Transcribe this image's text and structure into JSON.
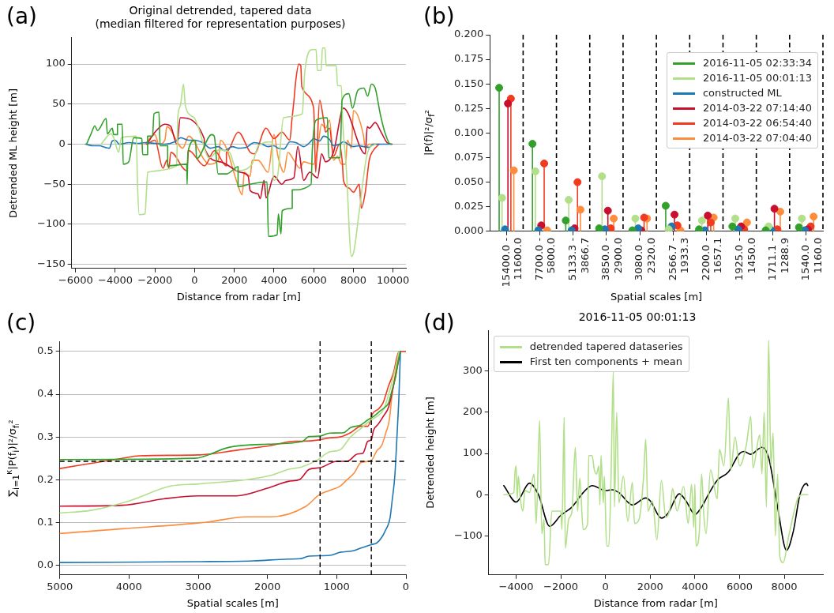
{
  "chart_data": [
    {
      "type": "line",
      "title": "Original detrended, tapered data\n(median filtered for representation purposes)",
      "xlabel": "Distance from radar [m]",
      "ylabel": "Detrended ML height [m]",
      "annotations": [
        "(a)"
      ],
      "xlim": [
        -6200,
        10650
      ],
      "xticks": [
        {
          "value": -6000,
          "label": "−6000"
        },
        {
          "value": -4000,
          "label": "−4000"
        },
        {
          "value": -2000,
          "label": "−2000"
        },
        0,
        2000,
        4000,
        6000,
        8000,
        10000
      ],
      "ylim": [
        -155,
        133
      ],
      "yticks": [
        {
          "value": -150,
          "label": "−150"
        },
        {
          "value": -100,
          "label": "−100"
        },
        {
          "value": -50,
          "label": "−50"
        },
        0,
        50,
        100
      ],
      "grid": "y",
      "marker": "none",
      "line_style": "solid",
      "series": [
        {
          "color": "#33a02c",
          "x": [
            -5450,
            -5220,
            -5030,
            -4900,
            -4460,
            -4400,
            -4150,
            -4080,
            -3890,
            -3890,
            -3650,
            -3600,
            -3320,
            -3070,
            -2660,
            -2620,
            -2370,
            -2370,
            -2120,
            -2050,
            -1800,
            -1740,
            -1360,
            -1360,
            -400,
            -380,
            -340,
            40,
            100,
            860,
            990,
            1180,
            1620,
            2190,
            2190,
            2760,
            3650,
            3720,
            4160,
            4220,
            4350,
            4410,
            4920,
            4920,
            5870,
            5930,
            6120,
            6690,
            6760,
            7330,
            7430,
            7770,
            7960,
            8220,
            8530,
            8720,
            8910,
            9100,
            9360,
            9610,
            9870,
            9930
          ],
          "values": [
            0,
            13,
            23,
            17,
            32,
            13,
            20,
            12,
            12,
            25,
            25,
            -25,
            -22,
            8,
            7,
            -13,
            -13,
            10,
            10,
            38,
            40,
            -2,
            -2,
            -27,
            -25,
            -50,
            -10,
            5,
            -18,
            12,
            10,
            -37,
            -37,
            -28,
            -53,
            -50,
            -47,
            -115,
            -113,
            -87,
            -112,
            -83,
            -80,
            -57,
            -50,
            -7,
            30,
            33,
            -17,
            -17,
            55,
            63,
            45,
            67,
            70,
            60,
            75,
            70,
            37,
            13,
            0,
            0
          ]
        },
        {
          "color": "#b2df8a",
          "x": [
            -4720,
            -4210,
            -4080,
            -3830,
            -3700,
            -2940,
            -2880,
            -2790,
            -2500,
            -2430,
            -2370,
            -910,
            -850,
            -720,
            -560,
            -470,
            -25,
            160,
            740,
            1240,
            1750,
            2130,
            2890,
            3210,
            3910,
            3970,
            4160,
            4480,
            5430,
            5490,
            5550,
            5930,
            6120,
            6190,
            6380,
            6440,
            6570,
            6630,
            7140,
            7200,
            7390,
            7460,
            7650,
            7900,
            8030,
            8280,
            8720,
            9100
          ],
          "values": [
            0,
            13,
            8,
            -10,
            8,
            10,
            -50,
            -88,
            -87,
            -60,
            -35,
            -27,
            33,
            48,
            75,
            48,
            33,
            23,
            -17,
            -7,
            -10,
            -33,
            -25,
            -2,
            3,
            -45,
            -42,
            33,
            38,
            63,
            90,
            118,
            118,
            92,
            92,
            120,
            120,
            98,
            98,
            73,
            73,
            30,
            -33,
            -140,
            -133,
            -87,
            -10,
            0
          ]
        },
        {
          "color": "#1f78b4",
          "x": [
            -5500,
            -5100,
            -4800,
            -4500,
            -4300,
            -4150,
            -4000,
            -3800,
            -3300,
            -2800,
            -2500,
            -2000,
            -1500,
            -1000,
            -700,
            -300,
            0,
            400,
            800,
            1200,
            1500,
            1900,
            2200,
            2600,
            3000,
            3400,
            3700,
            4000,
            4200,
            4500,
            4800,
            5100,
            5500,
            5800,
            6000,
            6300,
            6500,
            6800,
            7000,
            7300,
            7500,
            7800,
            8000,
            8300,
            8500,
            8800,
            9000,
            9400,
            9900
          ],
          "values": [
            0,
            -2,
            -2,
            -4,
            -5,
            4,
            5,
            0,
            2,
            1,
            2,
            1,
            0,
            3,
            8,
            5,
            5,
            2,
            -5,
            -3,
            -8,
            -3,
            -5,
            -4,
            2,
            0,
            -3,
            -2,
            -5,
            -6,
            3,
            2,
            -3,
            2,
            7,
            4,
            10,
            6,
            -2,
            0,
            3,
            -1,
            -3,
            -2,
            -3,
            -4,
            0,
            0,
            0
          ]
        },
        {
          "color": "#c8102e",
          "x": [
            -2400,
            -2000,
            -1500,
            -1200,
            -900,
            -720,
            480,
            500,
            1300,
            2300,
            2700,
            2800,
            3200,
            3300,
            3500,
            3600,
            4000,
            4400,
            4600,
            5000,
            5200,
            5500,
            5800,
            6200,
            6400,
            6600,
            7000,
            7500,
            8600,
            8700,
            8800,
            9100,
            9400,
            9700,
            9950
          ],
          "values": [
            0,
            15,
            25,
            22,
            0,
            33,
            7,
            -5,
            -22,
            -35,
            -40,
            -58,
            -62,
            -68,
            -45,
            -67,
            -40,
            -50,
            -45,
            -42,
            -3,
            -45,
            -35,
            -42,
            -12,
            -22,
            -10,
            45,
            -12,
            22,
            20,
            27,
            15,
            2,
            0
          ]
        },
        {
          "color": "#f03b20",
          "x": [
            -2400,
            -2000,
            -1600,
            -1400,
            -1300,
            -1200,
            -400,
            -300,
            500,
            1000,
            1600,
            1600,
            2200,
            2800,
            3000,
            3600,
            4000,
            4400,
            4800,
            4900,
            5000,
            5100,
            5250,
            5350,
            5400,
            6000,
            6100,
            6300,
            6500,
            6600,
            6800,
            7000,
            7300,
            7450,
            7500,
            7800,
            8000,
            8300,
            8400,
            8600,
            8800,
            9000,
            9300
          ],
          "values": [
            0,
            5,
            -30,
            -20,
            -30,
            -10,
            -33,
            -8,
            -27,
            -8,
            -27,
            -10,
            15,
            -10,
            -12,
            20,
            7,
            15,
            5,
            30,
            53,
            80,
            100,
            98,
            72,
            45,
            -35,
            55,
            30,
            15,
            20,
            -15,
            0,
            -25,
            -45,
            -55,
            -60,
            -50,
            -80,
            -60,
            -20,
            -8,
            0
          ]
        },
        {
          "color": "#fd8d3c",
          "x": [
            -2500,
            -2000,
            -1800,
            -1500,
            -1400,
            -600,
            -300,
            500,
            700,
            1200,
            1300,
            1600,
            2100,
            2400,
            2500,
            2800,
            2900,
            3200,
            3700,
            4000,
            4200,
            4500,
            4700,
            5000,
            5300,
            5500,
            6000,
            6200,
            6400,
            6600,
            6800,
            7000,
            7200,
            7400,
            7600,
            7700,
            7900,
            8000,
            8500,
            8600,
            8800,
            9300
          ],
          "values": [
            0,
            12,
            0,
            5,
            22,
            -5,
            10,
            -20,
            -25,
            -20,
            5,
            -5,
            -45,
            -63,
            -35,
            -40,
            -20,
            -20,
            -35,
            12,
            -15,
            -35,
            -10,
            -20,
            -30,
            -22,
            -25,
            -5,
            25,
            20,
            30,
            -20,
            -15,
            -25,
            -25,
            5,
            -5,
            42,
            12,
            -5,
            0,
            0
          ]
        }
      ]
    },
    {
      "type": "lollipop",
      "xlabel": "Spatial scales [m]",
      "ylabel": "|P(f)|²/σ$_{f}$²",
      "annotations": [
        "(b)"
      ],
      "categories": [
        "15400.0 -\n11600.0",
        "7700.0 -\n5800.0",
        "5133.3 -\n3866.7",
        "3850.0 -\n2900.0",
        "3080.0 -\n2320.0",
        "2566.7 -\n1933.3",
        "2200.0 -\n1657.1",
        "1925.0 -\n1450.0",
        "1711.1 -\n1288.9",
        "1540.0 -\n1160.0"
      ],
      "ylim": [
        0,
        0.2
      ],
      "yticks": [
        {
          "value": 0,
          "label": "0.000"
        },
        0.025,
        {
          "value": 0.05,
          "label": "0.050"
        },
        0.075,
        {
          "value": 0.1,
          "label": "0.100"
        },
        0.125,
        {
          "value": 0.15,
          "label": "0.150"
        },
        0.175,
        {
          "value": 0.2,
          "label": "0.200"
        }
      ],
      "grid": "x",
      "legend": "top right",
      "marker": "circle",
      "series": [
        {
          "name": "2016-11-05 02:33:34",
          "color": "#33a02c",
          "values": [
            0.146,
            0.089,
            0.011,
            0.003,
            0.001,
            0.026,
            0.002,
            0.005,
            0.001,
            0.004
          ]
        },
        {
          "name": "2016-11-05 00:01:13",
          "color": "#b2df8a",
          "values": [
            0.034,
            0.061,
            0.032,
            0.056,
            0.013,
            0.002,
            0.011,
            0.013,
            0.005,
            0.013
          ]
        },
        {
          "name": "constructed ML",
          "color": "#1f78b4",
          "values": [
            0.002,
            0.001,
            0.001,
            0.002,
            0.003,
            0.005,
            0.001,
            0.002,
            0.001,
            0.001
          ]
        },
        {
          "name": "2014-03-22 07:14:40",
          "color": "#c8102e",
          "values": [
            0.13,
            0.006,
            0.003,
            0.021,
            0.001,
            0.017,
            0.016,
            0.005,
            0.023,
            0.002
          ]
        },
        {
          "name": "2014-03-22 06:54:40",
          "color": "#f03b20",
          "values": [
            0.135,
            0.069,
            0.05,
            0.003,
            0.014,
            0.006,
            0.009,
            0.002,
            0.002,
            0.005
          ]
        },
        {
          "name": "2014-03-22 07:04:40",
          "color": "#fd8d3c",
          "values": [
            0.062,
            0.001,
            0.022,
            0.013,
            0.013,
            0.001,
            0.014,
            0.009,
            0.02,
            0.015
          ]
        }
      ]
    },
    {
      "type": "line",
      "xlabel": "Spatial scales [m]",
      "ylabel": "∑$_{i=1}$$^{κ}$|P(f$_{i}$)|²/σ$_{fᵢ}$²",
      "annotations": [
        "(c)"
      ],
      "xlim": [
        5000,
        0
      ],
      "xticks": [
        5000,
        4000,
        3000,
        2000,
        1000,
        0
      ],
      "ylim": [
        -0.023,
        0.524
      ],
      "yticks": [
        {
          "value": 0,
          "label": "0.0"
        },
        0.1,
        0.2,
        0.3,
        0.4,
        0.5
      ],
      "grid": "y",
      "marker": "none",
      "line_style": "solid",
      "ref_lines": [
        {
          "axis": "y",
          "value": 0.243,
          "color": "#000000",
          "line_style": "dashed"
        },
        {
          "axis": "x",
          "value": 1240,
          "color": "#000000",
          "line_style": "dashed"
        },
        {
          "axis": "x",
          "value": 500,
          "color": "#000000",
          "line_style": "dashed"
        }
      ],
      "series": [
        {
          "color": "#33a02c",
          "x": [
            5000,
            3050,
            2550,
            2000,
            1500,
            1400,
            1250,
            1100,
            900,
            800,
            650,
            550,
            450,
            380,
            300,
            250,
            200,
            150,
            120,
            80
          ],
          "values": [
            0.247,
            0.25,
            0.276,
            0.283,
            0.289,
            0.301,
            0.302,
            0.309,
            0.31,
            0.322,
            0.328,
            0.34,
            0.35,
            0.36,
            0.37,
            0.38,
            0.41,
            0.44,
            0.47,
            0.5
          ]
        },
        {
          "color": "#b2df8a",
          "x": [
            5000,
            4550,
            4000,
            3400,
            3000,
            2300,
            1950,
            1700,
            1500,
            1300,
            1100,
            950,
            800,
            650,
            500,
            400,
            320,
            250,
            170,
            100
          ],
          "values": [
            0.122,
            0.128,
            0.15,
            0.185,
            0.19,
            0.2,
            0.21,
            0.224,
            0.23,
            0.244,
            0.265,
            0.27,
            0.3,
            0.32,
            0.34,
            0.35,
            0.365,
            0.4,
            0.45,
            0.5
          ]
        },
        {
          "color": "#1f78b4",
          "x": [
            5000,
            3000,
            2200,
            1700,
            1530,
            1400,
            1100,
            950,
            750,
            650,
            500,
            420,
            350,
            300,
            230,
            200,
            160,
            130,
            100,
            80
          ],
          "values": [
            0.006,
            0.008,
            0.01,
            0.014,
            0.015,
            0.021,
            0.023,
            0.03,
            0.034,
            0.04,
            0.048,
            0.052,
            0.065,
            0.08,
            0.11,
            0.15,
            0.21,
            0.3,
            0.4,
            0.5
          ]
        },
        {
          "color": "#c8102e",
          "x": [
            5000,
            4100,
            3500,
            3000,
            2450,
            2000,
            1700,
            1530,
            1400,
            1240,
            1000,
            850,
            700,
            620,
            550,
            500,
            470,
            400,
            320,
            250,
            180,
            80
          ],
          "values": [
            0.138,
            0.14,
            0.155,
            0.162,
            0.162,
            0.18,
            0.196,
            0.201,
            0.224,
            0.228,
            0.243,
            0.243,
            0.26,
            0.262,
            0.29,
            0.293,
            0.315,
            0.33,
            0.35,
            0.37,
            0.42,
            0.5
          ]
        },
        {
          "color": "#f03b20",
          "x": [
            5000,
            4100,
            3850,
            3000,
            2400,
            1950,
            1600,
            1500,
            1250,
            1100,
            950,
            800,
            650,
            550,
            480,
            400,
            330,
            250,
            180,
            100,
            0
          ],
          "values": [
            0.226,
            0.25,
            0.256,
            0.258,
            0.27,
            0.28,
            0.29,
            0.29,
            0.293,
            0.298,
            0.3,
            0.31,
            0.325,
            0.325,
            0.355,
            0.365,
            0.38,
            0.42,
            0.45,
            0.5,
            0.5
          ]
        },
        {
          "color": "#fd8d3c",
          "x": [
            5000,
            4100,
            2900,
            2300,
            1950,
            1450,
            1250,
            1100,
            950,
            850,
            750,
            650,
            500,
            420,
            350,
            290,
            240,
            200,
            150,
            100
          ],
          "values": [
            0.074,
            0.085,
            0.1,
            0.113,
            0.113,
            0.137,
            0.165,
            0.175,
            0.185,
            0.2,
            0.215,
            0.24,
            0.245,
            0.268,
            0.28,
            0.31,
            0.34,
            0.4,
            0.45,
            0.5
          ]
        }
      ]
    },
    {
      "type": "line",
      "title": "2016-11-05 00:01:13",
      "xlabel": "Distance from radar [m]",
      "ylabel": "Detrended height [m]",
      "annotations": [
        "(d)"
      ],
      "xlim": [
        -5230,
        9730
      ],
      "xticks": [
        {
          "value": -4000,
          "label": "−4000"
        },
        {
          "value": -2000,
          "label": "−2000"
        },
        0,
        2000,
        4000,
        6000,
        8000
      ],
      "ylim": [
        -195,
        398
      ],
      "yticks": [
        {
          "value": -100,
          "label": "−100"
        },
        0,
        100,
        200,
        300
      ],
      "legend": "top left",
      "marker": "none",
      "line_style": "solid",
      "series": [
        {
          "name": "detrended tapered dataseries",
          "color": "#b2df8a",
          "x": [
            -4550,
            -4100,
            -4050,
            -4000,
            -3950,
            -3900,
            -3800,
            -3700,
            -3600,
            -3400,
            -3200,
            -3100,
            -2950,
            -2850,
            -2750,
            -2700,
            -2550,
            -2400,
            -2000,
            -1950,
            -1850,
            -1800,
            -1650,
            -1500,
            -1350,
            -1250,
            -1150,
            -1000,
            -800,
            -750,
            -600,
            -500,
            -400,
            -300,
            -250,
            -200,
            -100,
            -50,
            50,
            150,
            250,
            350,
            400,
            500,
            600,
            800,
            1000,
            1200,
            1300,
            1500,
            1700,
            1800,
            1900,
            2100,
            2300,
            2500,
            2700,
            2900,
            3000,
            3200,
            3500,
            3700,
            3850,
            3950,
            4000,
            4050,
            4200,
            4300,
            4400,
            4500,
            4700,
            5000,
            5100,
            5300,
            5500,
            5600,
            5800,
            6000,
            6300,
            6500,
            6600,
            6900,
            7000,
            7100,
            7200,
            7300,
            7400,
            7500,
            7600,
            7700,
            7800,
            7950,
            8200,
            8600,
            8800,
            9050
          ],
          "values": [
            0,
            5,
            55,
            70,
            -10,
            45,
            -15,
            -40,
            10,
            5,
            50,
            -70,
            180,
            -95,
            -60,
            -170,
            -170,
            -40,
            -40,
            -85,
            188,
            -130,
            -60,
            -40,
            115,
            -40,
            40,
            -85,
            -70,
            95,
            95,
            60,
            50,
            70,
            -25,
            95,
            -20,
            45,
            -125,
            -125,
            50,
            300,
            -30,
            200,
            -20,
            45,
            -65,
            30,
            -70,
            -60,
            40,
            135,
            -40,
            -15,
            -110,
            35,
            -55,
            -30,
            15,
            -40,
            20,
            -70,
            25,
            -80,
            25,
            -125,
            -90,
            50,
            -50,
            -95,
            60,
            -10,
            110,
            70,
            235,
            60,
            140,
            70,
            120,
            190,
            65,
            145,
            50,
            200,
            -30,
            375,
            70,
            150,
            -100,
            50,
            -150,
            -165,
            -100,
            -10,
            0,
            0
          ]
        },
        {
          "name": "First ten components + mean",
          "color": "#000000",
          "x": [
            -4550,
            -4000,
            -3400,
            -3000,
            -2500,
            -2000,
            -1500,
            -1000,
            -600,
            0,
            300,
            600,
            1200,
            1800,
            2000,
            2500,
            2800,
            3300,
            3600,
            4000,
            4300,
            4600,
            5000,
            5500,
            6000,
            6200,
            6500,
            7000,
            7300,
            7700,
            8100,
            8400,
            8700,
            9000,
            9050
          ],
          "values": [
            22,
            -18,
            28,
            0,
            -77,
            -50,
            -30,
            5,
            22,
            10,
            12,
            5,
            -25,
            -8,
            -15,
            -57,
            -45,
            2,
            -15,
            -48,
            -30,
            0,
            35,
            55,
            100,
            105,
            98,
            115,
            90,
            -30,
            -135,
            -90,
            0,
            27,
            22
          ]
        }
      ]
    }
  ]
}
